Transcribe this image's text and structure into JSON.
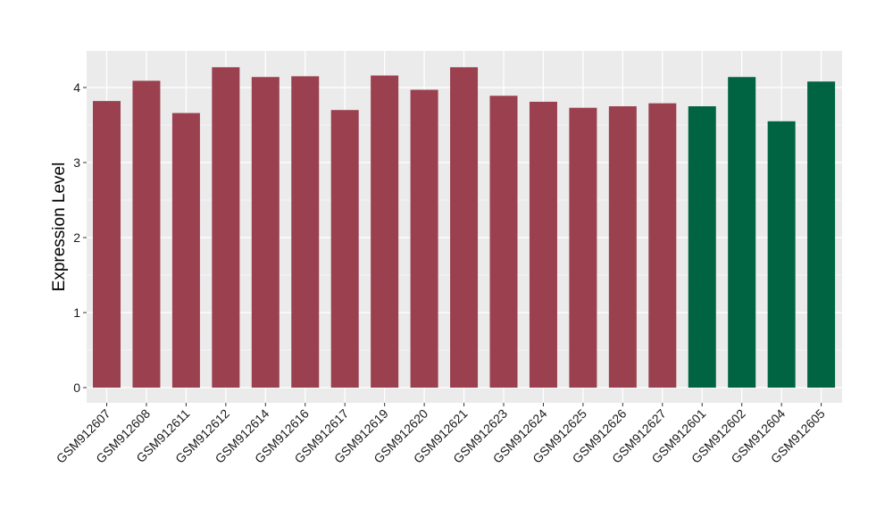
{
  "chart_data": {
    "type": "bar",
    "title": "",
    "xlabel": "",
    "ylabel": "Expression Level",
    "ylim": [
      0,
      4.5
    ],
    "yticks": [
      0,
      1,
      2,
      3,
      4
    ],
    "grid": true,
    "legend": "none",
    "colors": {
      "group1": "#9a404f",
      "group2": "#006442",
      "panel": "#ebebeb",
      "grid": "#ffffff"
    },
    "categories": [
      "GSM912607",
      "GSM912608",
      "GSM912611",
      "GSM912612",
      "GSM912614",
      "GSM912616",
      "GSM912617",
      "GSM912619",
      "GSM912620",
      "GSM912621",
      "GSM912623",
      "GSM912624",
      "GSM912625",
      "GSM912626",
      "GSM912627",
      "GSM912601",
      "GSM912602",
      "GSM912604",
      "GSM912605"
    ],
    "values": [
      3.82,
      4.09,
      3.66,
      4.27,
      4.14,
      4.15,
      3.7,
      4.16,
      3.97,
      4.27,
      3.89,
      3.81,
      3.73,
      3.75,
      3.79,
      3.75,
      4.14,
      3.55,
      4.08
    ],
    "groups": [
      "group1",
      "group1",
      "group1",
      "group1",
      "group1",
      "group1",
      "group1",
      "group1",
      "group1",
      "group1",
      "group1",
      "group1",
      "group1",
      "group1",
      "group1",
      "group2",
      "group2",
      "group2",
      "group2"
    ]
  }
}
